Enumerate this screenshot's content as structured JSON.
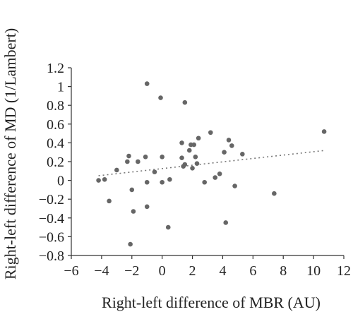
{
  "chart_data": {
    "type": "scatter",
    "title": "",
    "xlabel": "Right-left difference of MBR (AU)",
    "ylabel": "Right-left difference of MD (1/Lambert)",
    "xlim": [
      -6,
      12
    ],
    "ylim": [
      -0.8,
      1.2
    ],
    "xticks": [
      -6,
      -4,
      -2,
      0,
      2,
      4,
      6,
      8,
      10,
      12
    ],
    "xtick_labels": [
      "−6",
      "−4",
      "−2",
      "0",
      "2",
      "4",
      "6",
      "8",
      "10",
      "12"
    ],
    "yticks": [
      -0.8,
      -0.6,
      -0.4,
      -0.2,
      0,
      0.2,
      0.4,
      0.6,
      0.8,
      1,
      1.2
    ],
    "ytick_labels": [
      "−0.8",
      "−0.6",
      "−0.4",
      "−0.2",
      "0",
      "0.2",
      "0.4",
      "0.6",
      "0.8",
      "1",
      "1.2"
    ],
    "grid": false,
    "legend": "none",
    "point_color": "#666666",
    "trendline": {
      "style": "dotted",
      "color": "#777777",
      "x": [
        -4.2,
        10.8
      ],
      "y": [
        0.05,
        0.32
      ]
    },
    "points": [
      {
        "x": -4.2,
        "y": 0.0
      },
      {
        "x": -3.8,
        "y": 0.01
      },
      {
        "x": -3.5,
        "y": -0.22
      },
      {
        "x": -3.0,
        "y": 0.11
      },
      {
        "x": -2.3,
        "y": 0.2
      },
      {
        "x": -2.2,
        "y": 0.26
      },
      {
        "x": -2.1,
        "y": -0.68
      },
      {
        "x": -2.0,
        "y": -0.1
      },
      {
        "x": -1.9,
        "y": -0.33
      },
      {
        "x": -1.6,
        "y": 0.2
      },
      {
        "x": -1.1,
        "y": 0.25
      },
      {
        "x": -1.0,
        "y": 1.03
      },
      {
        "x": -1.0,
        "y": -0.02
      },
      {
        "x": -1.0,
        "y": -0.28
      },
      {
        "x": -0.5,
        "y": 0.09
      },
      {
        "x": 0.0,
        "y": 0.25
      },
      {
        "x": -0.1,
        "y": 0.88
      },
      {
        "x": 0.0,
        "y": -0.02
      },
      {
        "x": 0.5,
        "y": 0.01
      },
      {
        "x": 0.4,
        "y": -0.5
      },
      {
        "x": 1.3,
        "y": 0.4
      },
      {
        "x": 1.3,
        "y": 0.24
      },
      {
        "x": 1.4,
        "y": 0.15
      },
      {
        "x": 1.5,
        "y": 0.83
      },
      {
        "x": 1.5,
        "y": 0.17
      },
      {
        "x": 1.8,
        "y": 0.32
      },
      {
        "x": 1.9,
        "y": 0.38
      },
      {
        "x": 2.0,
        "y": 0.13
      },
      {
        "x": 2.1,
        "y": 0.38
      },
      {
        "x": 2.2,
        "y": 0.25
      },
      {
        "x": 2.3,
        "y": 0.18
      },
      {
        "x": 2.4,
        "y": 0.45
      },
      {
        "x": 2.8,
        "y": -0.02
      },
      {
        "x": 3.2,
        "y": 0.51
      },
      {
        "x": 3.5,
        "y": 0.03
      },
      {
        "x": 3.8,
        "y": 0.07
      },
      {
        "x": 4.1,
        "y": 0.3
      },
      {
        "x": 4.2,
        "y": -0.45
      },
      {
        "x": 4.4,
        "y": 0.43
      },
      {
        "x": 4.6,
        "y": 0.37
      },
      {
        "x": 4.8,
        "y": -0.06
      },
      {
        "x": 5.3,
        "y": 0.28
      },
      {
        "x": 7.4,
        "y": -0.14
      },
      {
        "x": 10.7,
        "y": 0.52
      }
    ]
  }
}
